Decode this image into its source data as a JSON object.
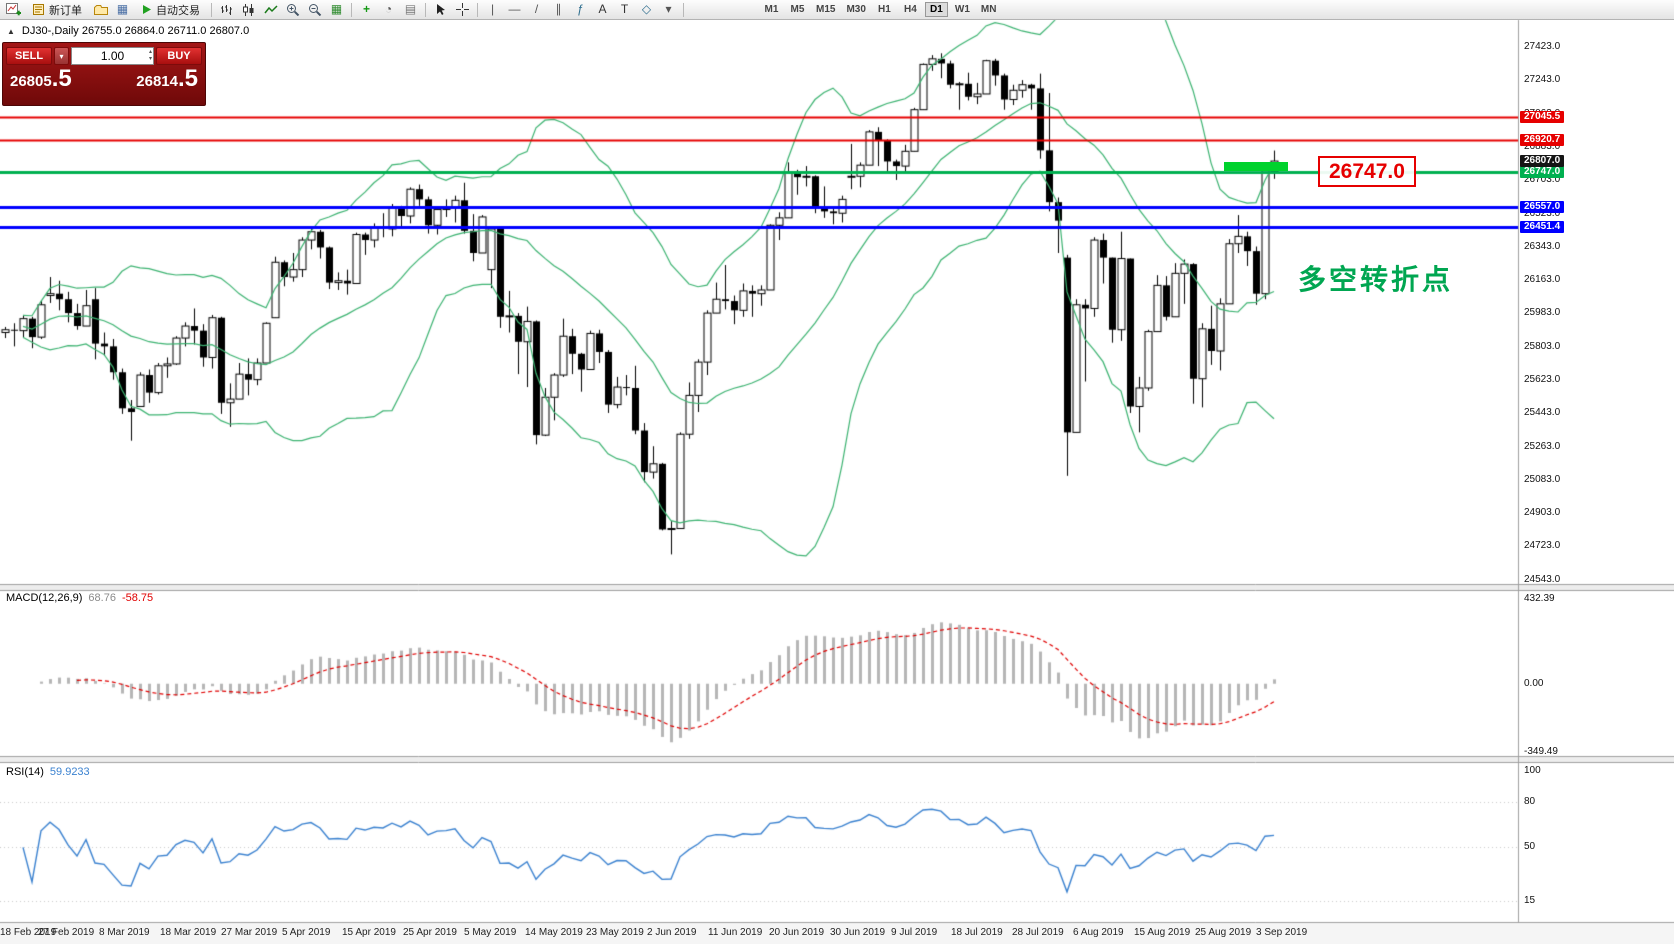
{
  "ui": {
    "collapse_icon": "▲",
    "toolbar": {
      "items": [
        {
          "k": "icon",
          "name": "new-chart-icon",
          "svg": "newchart"
        },
        {
          "k": "btn",
          "name": "new-order-button",
          "svg": "neworder",
          "label": "新订单"
        },
        {
          "k": "icon",
          "name": "profiles-icon",
          "svg": "profiles"
        },
        {
          "k": "icon",
          "name": "data-window-icon",
          "glyph": "▦",
          "color": "#4a6fa5"
        },
        {
          "k": "btn",
          "name": "autotrading-button",
          "svg": "play",
          "label": "自动交易"
        },
        {
          "k": "sep"
        },
        {
          "k": "icon",
          "name": "bar-chart-icon",
          "svg": "bars"
        },
        {
          "k": "icon",
          "name": "candlestick-chart-icon",
          "svg": "candles"
        },
        {
          "k": "icon",
          "name": "line-chart-icon",
          "svg": "linechart"
        },
        {
          "k": "icon",
          "name": "zoom-in-icon",
          "svg": "zoomin"
        },
        {
          "k": "icon",
          "name": "zoom-out-icon",
          "svg": "zoomout"
        },
        {
          "k": "icon",
          "name": "tile-windows-icon",
          "glyph": "▦",
          "color": "#2e8b2e"
        },
        {
          "k": "sep"
        },
        {
          "k": "icon",
          "name": "indicators-icon",
          "glyph": "+",
          "color": "#149914",
          "bold": true
        },
        {
          "k": "icon",
          "name": "periods-icon",
          "glyph": "◔",
          "color": "#555555"
        },
        {
          "k": "icon",
          "name": "templates-icon",
          "glyph": "▤",
          "color": "#777777"
        },
        {
          "k": "sep"
        },
        {
          "k": "icon",
          "name": "cursor-icon",
          "svg": "cursor"
        },
        {
          "k": "icon",
          "name": "crosshair-icon",
          "svg": "crosshair"
        },
        {
          "k": "sep"
        },
        {
          "k": "icon",
          "name": "vertical-line-icon",
          "glyph": "|",
          "color": "#555555"
        },
        {
          "k": "icon",
          "name": "horizontal-line-icon",
          "glyph": "—",
          "color": "#555555"
        },
        {
          "k": "icon",
          "name": "trendline-icon",
          "glyph": "/",
          "color": "#555555"
        },
        {
          "k": "icon",
          "name": "channel-icon",
          "glyph": "∥",
          "color": "#555555"
        },
        {
          "k": "icon",
          "name": "fibonacci-icon",
          "glyph": "ƒ",
          "color": "#2e6e8e"
        },
        {
          "k": "icon",
          "name": "text-icon",
          "glyph": "A",
          "color": "#333333"
        },
        {
          "k": "icon",
          "name": "label-icon",
          "glyph": "T",
          "color": "#333333"
        },
        {
          "k": "icon",
          "name": "shapes-icon",
          "glyph": "◇",
          "color": "#2e6e8e"
        },
        {
          "k": "icon",
          "name": "dropdown-arrow-icon",
          "glyph": "▾",
          "color": "#555555"
        },
        {
          "k": "sep"
        },
        {
          "k": "space"
        }
      ],
      "timeframes": [
        "M1",
        "M5",
        "M15",
        "M30",
        "H1",
        "H4",
        "D1",
        "W1",
        "MN"
      ],
      "active_timeframe": "D1"
    },
    "trade_panel": {
      "sell_label": "SELL",
      "buy_label": "BUY",
      "volume": "1.00",
      "volume_dropdown_glyph": "▾",
      "volume_up_glyph": "▴",
      "volume_down_glyph": "▾",
      "sell_price_int": "26805",
      "sell_price_frac": ".5",
      "buy_price_int": "26814",
      "buy_price_frac": ".5"
    }
  },
  "chart_data": {
    "type": "candlestick",
    "symbol": "DJ30-",
    "period": "Daily",
    "title": "DJ30-,Daily 26755.0 26864.0 26711.0 26807.0",
    "open": "26755.0",
    "high": "26864.0",
    "low": "26711.0",
    "close": "26807.0",
    "y_range": {
      "top": 27570,
      "bottom": 24520
    },
    "y_axis_ticks": [
      "27423.0",
      "27243.0",
      "27063.0",
      "26883.0",
      "26703.0",
      "26523.0",
      "26343.0",
      "26163.0",
      "25983.0",
      "25803.0",
      "25623.0",
      "25443.0",
      "25263.0",
      "25083.0",
      "24903.0",
      "24723.0",
      "24543.0"
    ],
    "x_axis_dates": [
      "18 Feb 2019",
      "27 Feb 2019",
      "8 Mar 2019",
      "18 Mar 2019",
      "27 Mar 2019",
      "5 Apr 2019",
      "15 Apr 2019",
      "25 Apr 2019",
      "5 May 2019",
      "14 May 2019",
      "23 May 2019",
      "2 Jun 2019",
      "11 Jun 2019",
      "20 Jun 2019",
      "30 Jun 2019",
      "9 Jul 2019",
      "18 Jul 2019",
      "28 Jul 2019",
      "6 Aug 2019",
      "15 Aug 2019",
      "25 Aug 2019",
      "3 Sep 2019"
    ],
    "horizontal_lines": [
      {
        "label": "27045.5",
        "price": 27045.5,
        "color": "#e60000",
        "width": 2
      },
      {
        "label": "26920.7",
        "price": 26920.7,
        "color": "#e60000",
        "width": 2
      },
      {
        "label": "26747.0",
        "price": 26747.0,
        "color": "#00b050",
        "width": 3
      },
      {
        "label": "26557.0",
        "price": 26557.0,
        "color": "#0000ff",
        "width": 3
      },
      {
        "label": "26451.4",
        "price": 26451.4,
        "color": "#0000ff",
        "width": 3
      }
    ],
    "last_price": {
      "label": "26807.0",
      "price": 26807.0,
      "bg": "#151515"
    },
    "annotations": {
      "price_callout": "26747.0",
      "turning_point_text": "多空转折点",
      "highlight_bar": {
        "bar_start": 136,
        "bar_end": 141,
        "price": 26747.0
      }
    },
    "indicators": {
      "bollinger": {
        "name": "Bollinger Bands",
        "period": 20,
        "deviation": 2,
        "color": "#3cb371"
      },
      "macd": {
        "name": "MACD(12,26,9)",
        "main_value": "68.76",
        "signal_value": "-58.75",
        "axis": [
          "432.39",
          "0.00",
          "-349.49"
        ],
        "histogram_color": "#b6b6b6",
        "signal_color": "#e00000"
      },
      "rsi": {
        "name": "RSI(14)",
        "value": "59.9233",
        "axis": [
          "100",
          "80",
          "50",
          "15"
        ],
        "levels": [
          80,
          50,
          15
        ],
        "color": "#3b82d0"
      }
    },
    "bars": [
      [
        25880,
        25910,
        25850,
        25895
      ],
      [
        25895,
        25930,
        25805,
        25890
      ],
      [
        25890,
        25975,
        25850,
        25955
      ],
      [
        25955,
        25965,
        25795,
        25855
      ],
      [
        25855,
        26055,
        25845,
        26030
      ],
      [
        26080,
        26180,
        26040,
        26090
      ],
      [
        26090,
        26160,
        26000,
        26060
      ],
      [
        26060,
        26100,
        25935,
        25985
      ],
      [
        25985,
        26035,
        25895,
        25915
      ],
      [
        25915,
        26110,
        25915,
        26025
      ],
      [
        26060,
        26120,
        25735,
        25820
      ],
      [
        25820,
        25880,
        25755,
        25805
      ],
      [
        25805,
        25845,
        25625,
        25665
      ],
      [
        25665,
        25685,
        25440,
        25470
      ],
      [
        25470,
        25515,
        25295,
        25450
      ],
      [
        25480,
        25665,
        25480,
        25650
      ],
      [
        25650,
        25680,
        25500,
        25555
      ],
      [
        25555,
        25715,
        25545,
        25700
      ],
      [
        25700,
        25745,
        25635,
        25710
      ],
      [
        25710,
        25860,
        25705,
        25850
      ],
      [
        25850,
        25935,
        25805,
        25915
      ],
      [
        25915,
        26010,
        25815,
        25890
      ],
      [
        25890,
        25925,
        25695,
        25745
      ],
      [
        25745,
        25975,
        25685,
        25960
      ],
      [
        25960,
        25965,
        25440,
        25500
      ],
      [
        25500,
        25605,
        25370,
        25520
      ],
      [
        25520,
        25715,
        25520,
        25655
      ],
      [
        25655,
        25740,
        25540,
        25625
      ],
      [
        25625,
        25740,
        25595,
        25715
      ],
      [
        25715,
        25935,
        25715,
        25930
      ],
      [
        25960,
        26290,
        25960,
        26260
      ],
      [
        26260,
        26270,
        26130,
        26180
      ],
      [
        26180,
        26310,
        26155,
        26220
      ],
      [
        26220,
        26395,
        26180,
        26380
      ],
      [
        26380,
        26440,
        26330,
        26425
      ],
      [
        26425,
        26435,
        26280,
        26340
      ],
      [
        26340,
        26345,
        26115,
        26150
      ],
      [
        26150,
        26205,
        26110,
        26160
      ],
      [
        26160,
        26220,
        26085,
        26145
      ],
      [
        26145,
        26420,
        26145,
        26410
      ],
      [
        26410,
        26420,
        26300,
        26380
      ],
      [
        26380,
        26470,
        26340,
        26450
      ],
      [
        26450,
        26525,
        26395,
        26440
      ],
      [
        26440,
        26575,
        26400,
        26560
      ],
      [
        26560,
        26565,
        26445,
        26510
      ],
      [
        26510,
        26665,
        26470,
        26655
      ],
      [
        26655,
        26680,
        26565,
        26600
      ],
      [
        26600,
        26615,
        26415,
        26460
      ],
      [
        26460,
        26555,
        26410,
        26545
      ],
      [
        26545,
        26600,
        26505,
        26555
      ],
      [
        26555,
        26620,
        26475,
        26595
      ],
      [
        26595,
        26690,
        26415,
        26430
      ],
      [
        26430,
        26520,
        26265,
        26310
      ],
      [
        26310,
        26515,
        26310,
        26505
      ],
      [
        26220,
        26450,
        26120,
        26440
      ],
      [
        26440,
        26445,
        25905,
        25965
      ],
      [
        25965,
        26105,
        25880,
        25970
      ],
      [
        25970,
        25985,
        25655,
        25830
      ],
      [
        25830,
        26020,
        25585,
        25940
      ],
      [
        25940,
        25945,
        25275,
        25325
      ],
      [
        25325,
        25580,
        25320,
        25530
      ],
      [
        25530,
        25660,
        25405,
        25650
      ],
      [
        25650,
        25955,
        25640,
        25860
      ],
      [
        25860,
        25900,
        25655,
        25765
      ],
      [
        25765,
        25770,
        25560,
        25680
      ],
      [
        25680,
        25890,
        25680,
        25875
      ],
      [
        25875,
        25895,
        25715,
        25775
      ],
      [
        25775,
        25785,
        25445,
        25490
      ],
      [
        25490,
        25640,
        25470,
        25585
      ],
      [
        25585,
        25650,
        25540,
        25580
      ],
      [
        25580,
        25700,
        25330,
        25350
      ],
      [
        25350,
        25390,
        25070,
        25125
      ],
      [
        25125,
        25265,
        25090,
        25170
      ],
      [
        25170,
        25175,
        24810,
        24815
      ],
      [
        24815,
        24860,
        24680,
        24820
      ],
      [
        24820,
        25340,
        24820,
        25330
      ],
      [
        25330,
        25610,
        25305,
        25540
      ],
      [
        25540,
        25735,
        25450,
        25720
      ],
      [
        25720,
        26000,
        25650,
        25985
      ],
      [
        25985,
        26150,
        25985,
        26060
      ],
      [
        26060,
        26245,
        26005,
        26050
      ],
      [
        26050,
        26080,
        25925,
        26000
      ],
      [
        26000,
        26145,
        25965,
        26105
      ],
      [
        26105,
        26135,
        25965,
        26090
      ],
      [
        26090,
        26135,
        26025,
        26110
      ],
      [
        26110,
        26465,
        26110,
        26460
      ],
      [
        26460,
        26530,
        26380,
        26500
      ],
      [
        26500,
        26800,
        26500,
        26750
      ],
      [
        26750,
        26760,
        26625,
        26720
      ],
      [
        26720,
        26780,
        26670,
        26725
      ],
      [
        26725,
        26730,
        26525,
        26550
      ],
      [
        26550,
        26670,
        26500,
        26535
      ],
      [
        26535,
        26555,
        26465,
        26525
      ],
      [
        26525,
        26620,
        26475,
        26600
      ],
      [
        26720,
        26900,
        26655,
        26725
      ],
      [
        26725,
        26800,
        26665,
        26785
      ],
      [
        26785,
        26975,
        26785,
        26965
      ],
      [
        26965,
        26990,
        26780,
        26920
      ],
      [
        26920,
        26925,
        26745,
        26805
      ],
      [
        26805,
        26815,
        26705,
        26780
      ],
      [
        26780,
        26895,
        26745,
        26860
      ],
      [
        26860,
        27095,
        26860,
        27085
      ],
      [
        27085,
        27335,
        27085,
        27330
      ],
      [
        27330,
        27380,
        27295,
        27360
      ],
      [
        27360,
        27390,
        27255,
        27335
      ],
      [
        27335,
        27350,
        27200,
        27220
      ],
      [
        27220,
        27235,
        27085,
        27225
      ],
      [
        27225,
        27285,
        27135,
        27155
      ],
      [
        27155,
        27230,
        27115,
        27170
      ],
      [
        27170,
        27355,
        27170,
        27350
      ],
      [
        27350,
        27360,
        27215,
        27270
      ],
      [
        27270,
        27280,
        27085,
        27140
      ],
      [
        27140,
        27220,
        27110,
        27190
      ],
      [
        27190,
        27245,
        27150,
        27220
      ],
      [
        27220,
        27225,
        27085,
        27200
      ],
      [
        27200,
        27280,
        26820,
        26865
      ],
      [
        26865,
        27175,
        26535,
        26585
      ],
      [
        26585,
        26610,
        26310,
        26485
      ],
      [
        26285,
        26300,
        25105,
        25340
      ],
      [
        25340,
        26060,
        25340,
        26030
      ],
      [
        26030,
        26060,
        25615,
        26010
      ],
      [
        26010,
        26395,
        25965,
        26380
      ],
      [
        26380,
        26415,
        26145,
        26285
      ],
      [
        26285,
        26285,
        25825,
        25895
      ],
      [
        25895,
        26425,
        25835,
        26280
      ],
      [
        26280,
        26280,
        25445,
        25480
      ],
      [
        25480,
        25640,
        25340,
        25580
      ],
      [
        25580,
        25895,
        25565,
        25885
      ],
      [
        25885,
        26190,
        25885,
        26135
      ],
      [
        26135,
        26185,
        25945,
        25965
      ],
      [
        25965,
        26255,
        25965,
        26200
      ],
      [
        26200,
        26275,
        26035,
        26250
      ],
      [
        26250,
        26255,
        25495,
        25630
      ],
      [
        25630,
        25930,
        25475,
        25900
      ],
      [
        25900,
        26025,
        25705,
        25780
      ],
      [
        25780,
        26065,
        25675,
        26035
      ],
      [
        26035,
        26385,
        26035,
        26360
      ],
      [
        26360,
        26515,
        26310,
        26400
      ],
      [
        26400,
        26425,
        26240,
        26320
      ],
      [
        26320,
        26345,
        26030,
        26090
      ],
      [
        26090,
        26790,
        26060,
        26760
      ],
      [
        26755,
        26864,
        26711,
        26807
      ]
    ]
  }
}
